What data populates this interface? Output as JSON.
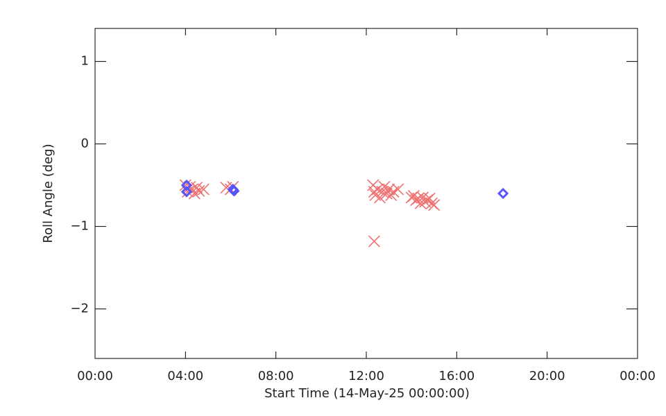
{
  "chart_data": {
    "type": "scatter",
    "x_label": "Start Time (14-May-25 00:00:00)",
    "y_label": "Roll Angle (deg)",
    "xlim": [
      0,
      24
    ],
    "xticks": [
      {
        "value": 0,
        "label": "00:00"
      },
      {
        "value": 4,
        "label": "04:00"
      },
      {
        "value": 8,
        "label": "08:00"
      },
      {
        "value": 12,
        "label": "12:00"
      },
      {
        "value": 16,
        "label": "16:00"
      },
      {
        "value": 20,
        "label": "20:00"
      },
      {
        "value": 24,
        "label": "00:00"
      }
    ],
    "ylim": [
      -2.6,
      1.4
    ],
    "yticks": [
      {
        "value": -2,
        "label": "−2"
      },
      {
        "value": -1,
        "label": "−1"
      },
      0,
      1
    ],
    "series": [
      {
        "color": "#f07070",
        "marker": "x",
        "x": [
          4.0,
          4.1,
          4.2,
          4.3,
          4.4,
          4.5,
          4.6,
          4.8,
          5.8,
          6.0,
          6.1,
          12.3,
          12.35,
          12.4,
          12.5,
          12.6,
          12.7,
          12.8,
          12.9,
          13.0,
          13.1,
          13.2,
          13.4,
          12.35,
          14.0,
          14.1,
          14.2,
          14.3,
          14.4,
          14.5,
          14.6,
          14.7,
          14.8,
          14.9,
          15.0
        ],
        "values": [
          -0.5,
          -0.58,
          -0.52,
          -0.55,
          -0.6,
          -0.53,
          -0.57,
          -0.55,
          -0.53,
          -0.55,
          -0.52,
          -0.5,
          -0.58,
          -0.62,
          -0.55,
          -0.65,
          -0.58,
          -0.52,
          -0.6,
          -0.55,
          -0.62,
          -0.58,
          -0.55,
          -1.18,
          -0.65,
          -0.63,
          -0.68,
          -0.66,
          -0.72,
          -0.65,
          -0.7,
          -0.68,
          -0.66,
          -0.72,
          -0.74
        ]
      },
      {
        "color": "#5555ff",
        "marker": "diamond",
        "x": [
          4.05,
          4.05,
          6.1,
          6.15,
          18.05
        ],
        "values": [
          -0.5,
          -0.58,
          -0.55,
          -0.57,
          -0.6
        ]
      }
    ]
  }
}
